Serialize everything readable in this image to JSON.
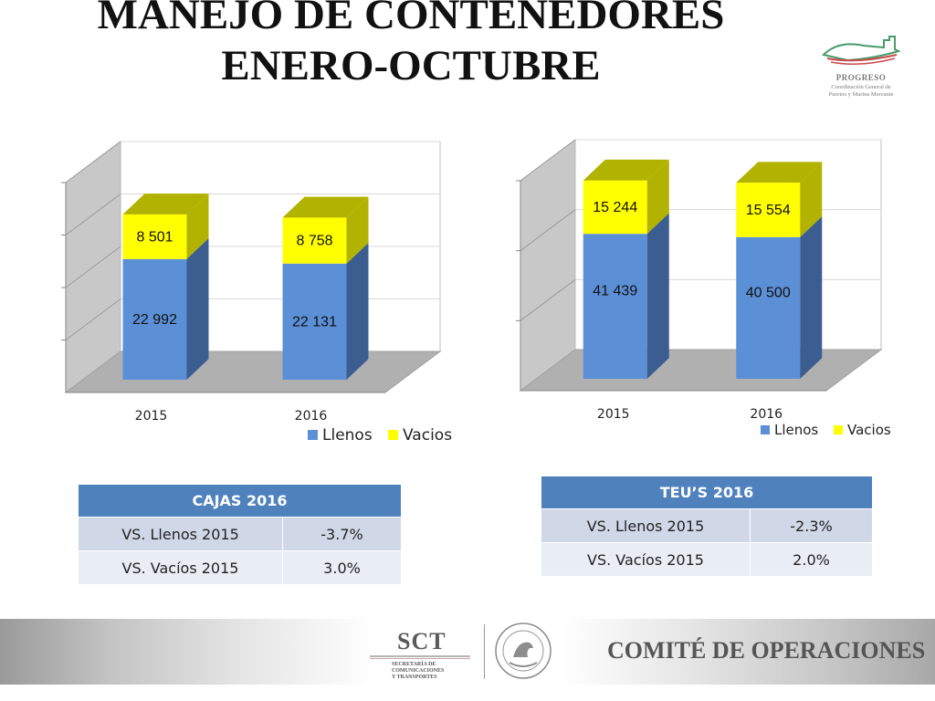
{
  "page": {
    "title_line1": "MANEJO DE CONTENEDORES",
    "title_line2": "ENERO-OCTUBRE"
  },
  "logo_top": {
    "name": "PROGRESO",
    "subtitle_line1": "Coordinación General de",
    "subtitle_line2": "Puertos y Marina Mercante"
  },
  "footer": {
    "sct_title": "SCT",
    "sct_sub1": "SECRETARÍA DE",
    "sct_sub2": "COMUNICACIONES",
    "sct_sub3": "Y TRANSPORTES",
    "comite": "COMITÉ DE OPERACIONES"
  },
  "colors": {
    "llenos": "#5b8fd6",
    "llenos_side": "#3c5d8f",
    "vacios": "#ffff00",
    "vacios_side": "#b2b200",
    "floor": "#b0b0b0",
    "wall": "#c8c8c8",
    "header": "#4f81bd"
  },
  "chart_data": [
    {
      "type": "bar",
      "stacked": true,
      "categories": [
        "2015",
        "2016"
      ],
      "series": [
        {
          "name": "Llenos",
          "values": [
            22992,
            22131
          ],
          "labels": [
            "22 992",
            "22 131"
          ]
        },
        {
          "name": "Vacios",
          "values": [
            8501,
            8758
          ],
          "labels": [
            "8 501",
            "8 758"
          ]
        }
      ],
      "ylim": [
        0,
        40000
      ],
      "legend": "bottom",
      "grid": true
    },
    {
      "type": "bar",
      "stacked": true,
      "categories": [
        "2015",
        "2016"
      ],
      "series": [
        {
          "name": "Llenos",
          "values": [
            41439,
            40500
          ],
          "labels": [
            "41 439",
            "40 500"
          ]
        },
        {
          "name": "Vacios",
          "values": [
            15244,
            15554
          ],
          "labels": [
            "15 244",
            "15 554"
          ]
        }
      ],
      "ylim": [
        0,
        60000
      ],
      "legend": "bottom",
      "grid": true
    }
  ],
  "tables": {
    "cajas": {
      "header": "CAJAS 2016",
      "rows": [
        {
          "label": "VS.  Llenos 2015",
          "value": "-3.7%"
        },
        {
          "label": "VS. Vacíos 2015",
          "value": "3.0%"
        }
      ]
    },
    "teus": {
      "header": "TEU’S 2016",
      "rows": [
        {
          "label": "VS. Llenos 2015",
          "value": "-2.3%"
        },
        {
          "label": "VS. Vacíos 2015",
          "value": "2.0%"
        }
      ]
    }
  }
}
